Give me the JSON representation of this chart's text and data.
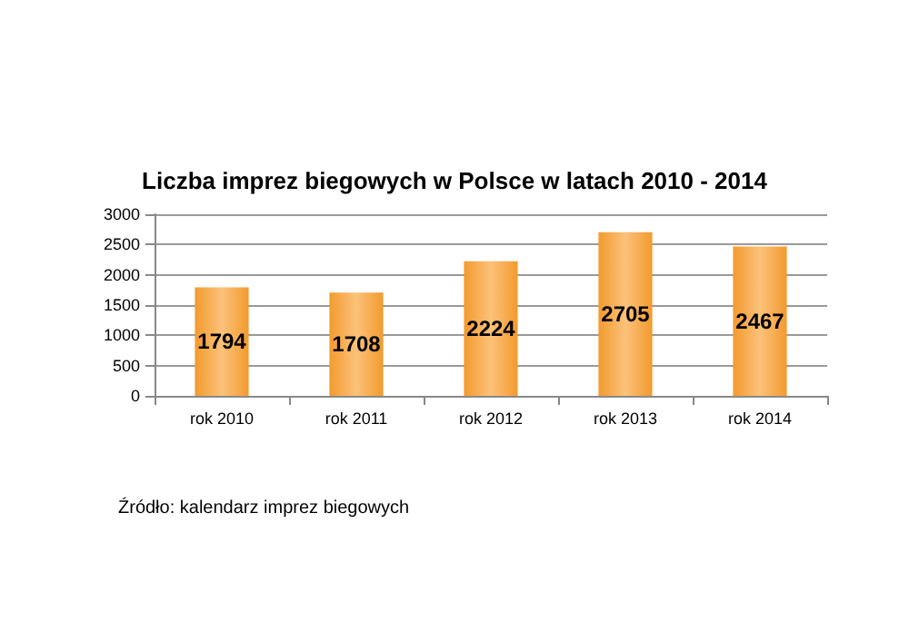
{
  "chart_data": {
    "type": "bar",
    "title": "Liczba imprez biegowych w Polsce w latach 2010 - 2014",
    "categories": [
      "rok 2010",
      "rok 2011",
      "rok 2012",
      "rok 2013",
      "rok 2014"
    ],
    "values": [
      1794,
      1708,
      2224,
      2705,
      2467
    ],
    "color": "#f39a2e",
    "data_labels": true,
    "ylim": [
      0,
      3000
    ],
    "yticks": [
      0,
      500,
      1000,
      1500,
      2000,
      2500,
      3000
    ],
    "grid": "y",
    "annotations": [
      "Źródło: kalendarz imprez biegowych"
    ]
  }
}
